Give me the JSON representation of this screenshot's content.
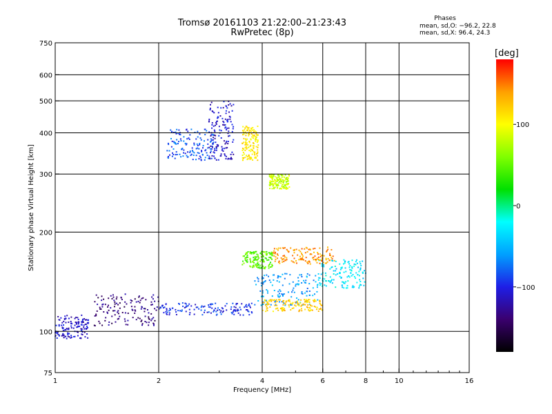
{
  "header": {
    "title_line1": "Tromsø 20161103 21:22:00–21:23:43",
    "title_line2": "RwPretec (8p)",
    "phases_title": "Phases",
    "stat_o": "mean, sd,O: −96.2, 22.8",
    "stat_x": "mean, sd,X:  96.4, 24.3"
  },
  "colorbar": {
    "unit": "[deg]",
    "tick_labels": [
      "100",
      "0",
      "−100"
    ],
    "tick_values": [
      100,
      0,
      -100
    ],
    "range": [
      -180,
      180
    ],
    "colormap": [
      "#000000",
      "#3a006e",
      "#1e1ee6",
      "#00a0ff",
      "#00ffff",
      "#00e000",
      "#80ff00",
      "#ffff00",
      "#ffa000",
      "#ff0000"
    ]
  },
  "chart_data": {
    "type": "scatter",
    "xlabel": "Frequency [MHz]",
    "ylabel": "Stationary phase Virtual Height [km]",
    "x_scale": "log",
    "y_scale": "log",
    "xlim": [
      1,
      16
    ],
    "ylim": [
      75,
      750
    ],
    "x_ticks": [
      1,
      2,
      4,
      6,
      8,
      10,
      16
    ],
    "y_ticks": [
      75,
      100,
      200,
      300,
      400,
      500,
      600,
      750
    ],
    "x_grid": [
      2,
      4,
      6,
      8,
      10
    ],
    "y_grid": [
      100,
      200,
      300,
      400,
      500,
      600
    ],
    "grid": true,
    "colorbar_label": "[deg]",
    "traces": [
      {
        "f_range": [
          1.0,
          1.25
        ],
        "h_range": [
          95,
          112
        ],
        "phase": -110
      },
      {
        "f_range": [
          1.3,
          2.0
        ],
        "h_range": [
          104,
          130
        ],
        "phase": -135
      },
      {
        "f_range": [
          2.0,
          3.8
        ],
        "h_range": [
          112,
          122
        ],
        "phase": -95
      },
      {
        "f_range": [
          3.8,
          5.8
        ],
        "h_range": [
          120,
          150
        ],
        "phase": -60
      },
      {
        "f_range": [
          5.8,
          8.0
        ],
        "h_range": [
          135,
          165
        ],
        "phase": -30
      },
      {
        "f_range": [
          4.0,
          6.0
        ],
        "h_range": [
          115,
          125
        ],
        "phase": 120
      },
      {
        "f_range": [
          3.5,
          4.3
        ],
        "h_range": [
          155,
          175
        ],
        "phase": 50
      },
      {
        "f_range": [
          4.3,
          6.5
        ],
        "h_range": [
          160,
          180
        ],
        "phase": 140
      },
      {
        "f_range": [
          2.1,
          2.9
        ],
        "h_range": [
          330,
          410
        ],
        "phase": -85
      },
      {
        "f_range": [
          2.8,
          3.3
        ],
        "h_range": [
          330,
          500
        ],
        "phase": -110
      },
      {
        "f_range": [
          3.5,
          3.9
        ],
        "h_range": [
          330,
          420
        ],
        "phase": 110
      },
      {
        "f_range": [
          4.2,
          4.8
        ],
        "h_range": [
          270,
          300
        ],
        "phase": 80
      }
    ]
  }
}
